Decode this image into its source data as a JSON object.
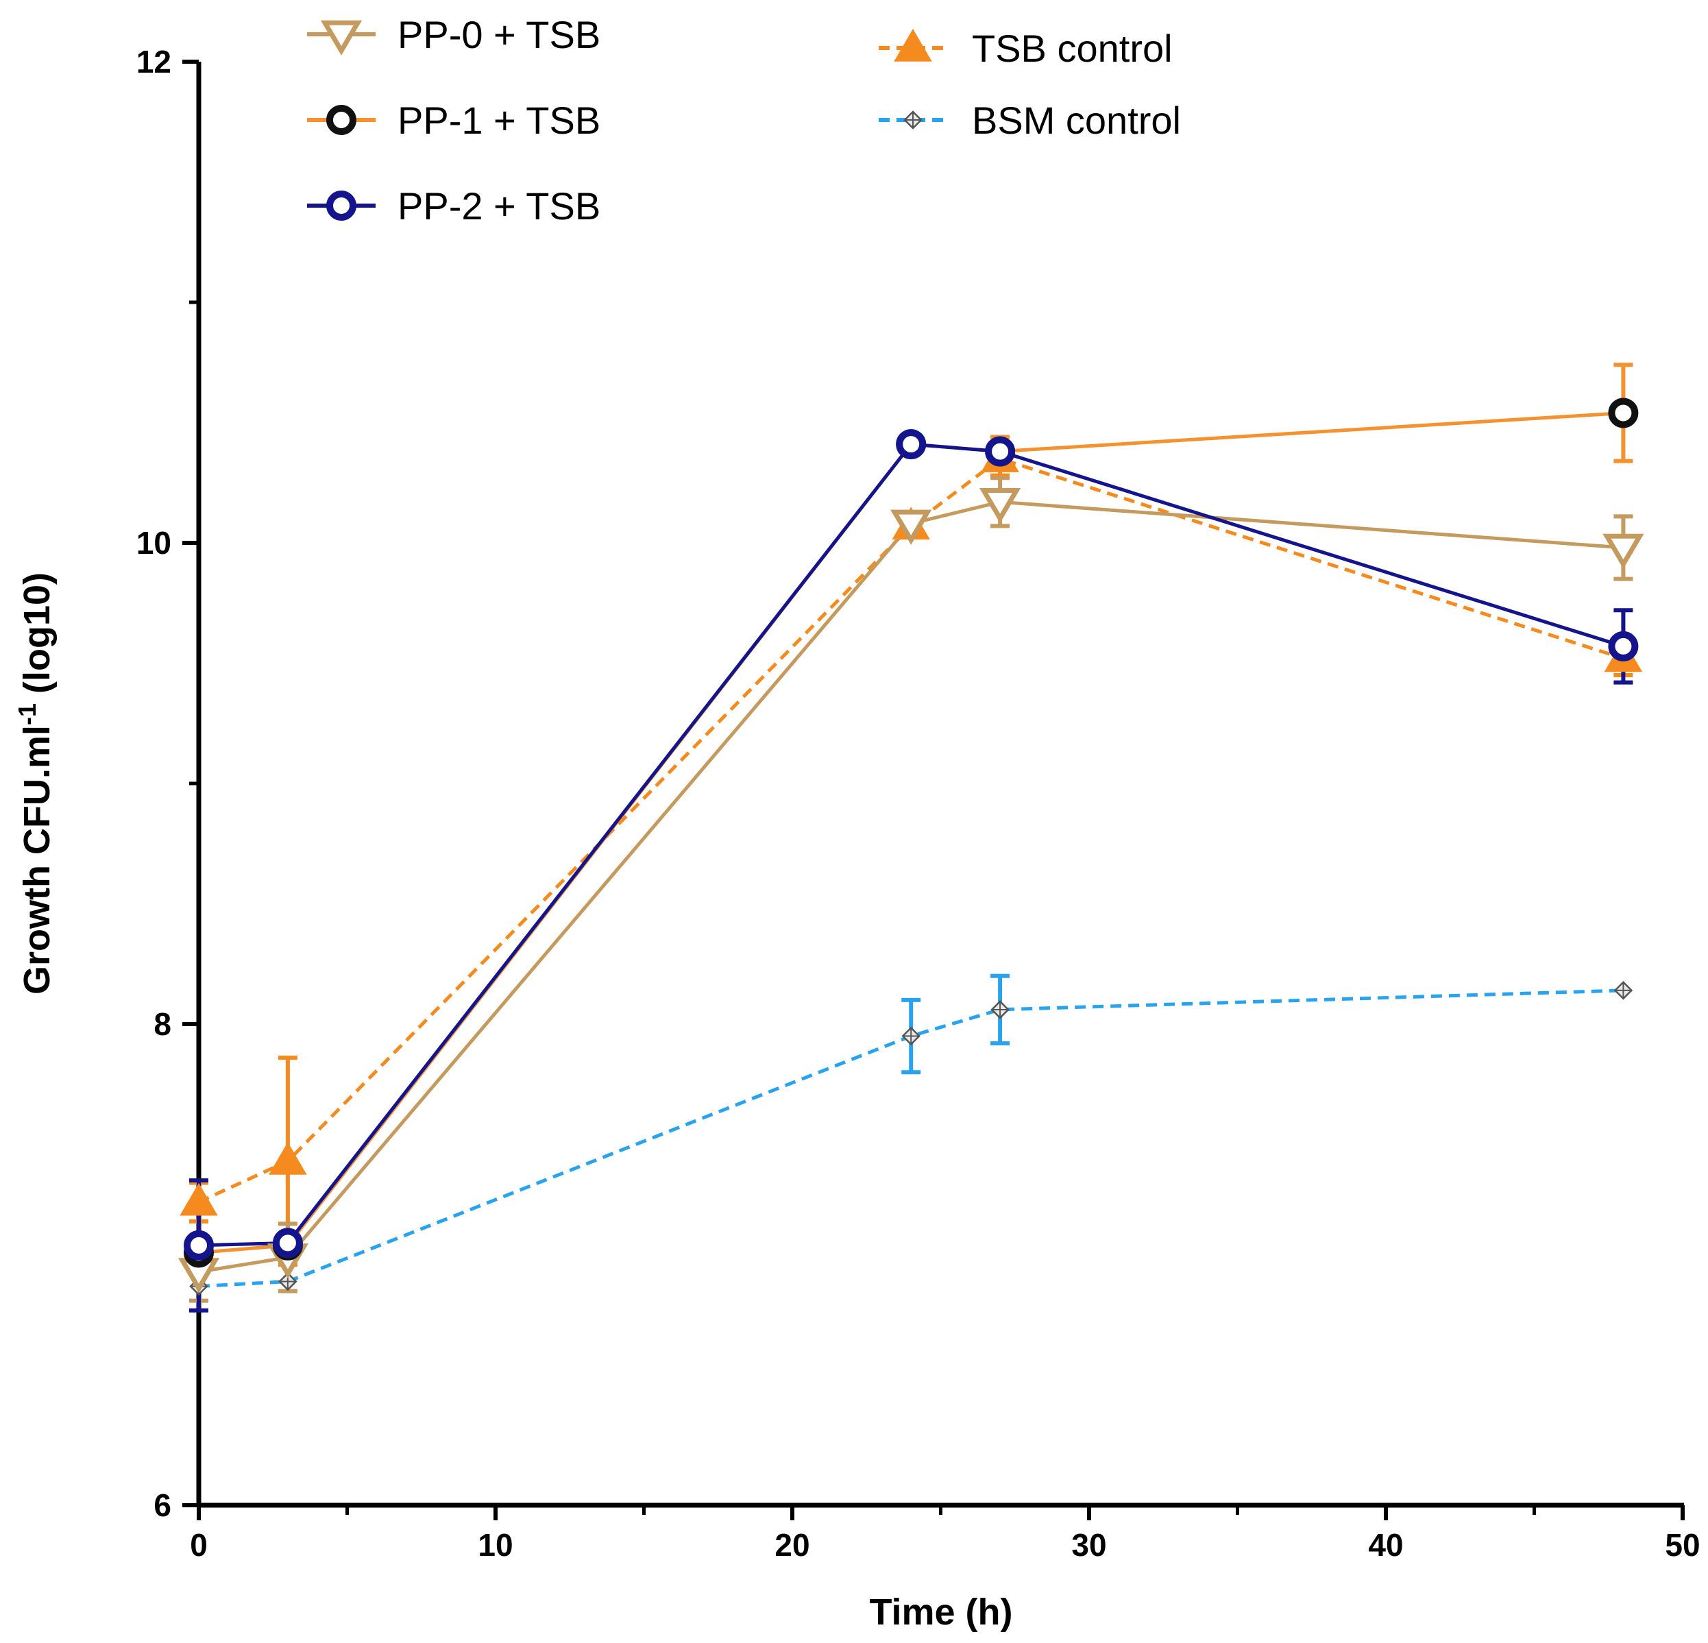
{
  "chart_data": {
    "type": "line",
    "title": "",
    "xlabel": "Time (h)",
    "ylabel": "Growth CFU.ml",
    "ylabel_superscript": "-1",
    "ylabel_suffix": "(log10)",
    "xlim": [
      0,
      50
    ],
    "ylim": [
      6,
      12
    ],
    "x_ticks": [
      0,
      10,
      20,
      30,
      40,
      50
    ],
    "x_minor_ticks": [
      5,
      15,
      25,
      35,
      45
    ],
    "y_ticks": [
      6,
      8,
      10,
      12
    ],
    "y_minor_ticks": [
      7,
      9,
      11
    ],
    "grid": false,
    "legend_position": "top",
    "series": [
      {
        "name": "PP-0 + TSB",
        "marker": "triangle-down",
        "line": "solid",
        "color": "#C49A5E",
        "x": [
          0,
          3,
          24,
          27,
          48
        ],
        "y": [
          6.97,
          7.03,
          10.08,
          10.17,
          9.98
        ],
        "err": [
          0.12,
          0.14,
          0.02,
          0.1,
          0.13
        ]
      },
      {
        "name": "PP-1 + TSB",
        "marker": "circle",
        "line": "solid",
        "color": "#F5922F",
        "x": [
          0,
          3,
          24,
          27,
          48
        ],
        "y": [
          7.05,
          7.08,
          10.41,
          10.38,
          10.54
        ],
        "err": [
          0.05,
          0.03,
          0.02,
          0.06,
          0.2
        ]
      },
      {
        "name": "PP-2 + TSB",
        "marker": "circle",
        "line": "solid",
        "color": "#14148C",
        "x": [
          0,
          3,
          24,
          27,
          48
        ],
        "y": [
          7.08,
          7.09,
          10.41,
          10.38,
          9.57
        ],
        "err": [
          0.27,
          0.03,
          0.02,
          0.02,
          0.15
        ]
      },
      {
        "name": "TSB control",
        "marker": "triangle-up",
        "line": "dashed",
        "color": "#F58A1E",
        "x": [
          0,
          3,
          24,
          27,
          48
        ],
        "y": [
          7.26,
          7.43,
          10.07,
          10.35,
          9.52
        ],
        "err": [
          0.08,
          0.43,
          0.03,
          0.07,
          0.07
        ]
      },
      {
        "name": "BSM control",
        "marker": "diamond",
        "line": "dashed",
        "color": "#2AA3EE",
        "x": [
          0,
          3,
          24,
          27,
          48
        ],
        "y": [
          6.91,
          6.93,
          7.95,
          8.06,
          8.14
        ],
        "err": [
          0.0,
          0.0,
          0.15,
          0.14,
          0.0
        ]
      }
    ]
  }
}
